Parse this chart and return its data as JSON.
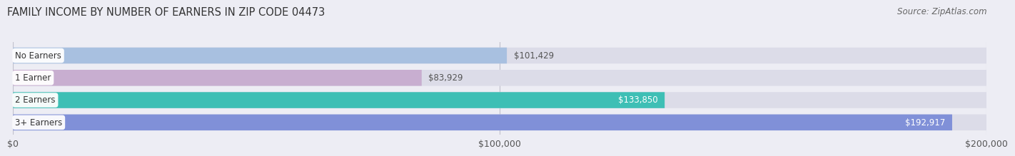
{
  "title": "FAMILY INCOME BY NUMBER OF EARNERS IN ZIP CODE 04473",
  "source": "Source: ZipAtlas.com",
  "categories": [
    "No Earners",
    "1 Earner",
    "2 Earners",
    "3+ Earners"
  ],
  "values": [
    101429,
    83929,
    133850,
    192917
  ],
  "bar_colors": [
    "#a8c0e0",
    "#c8aed0",
    "#3ebfb5",
    "#8090d8"
  ],
  "value_label_inside": [
    false,
    false,
    true,
    true
  ],
  "value_labels": [
    "$101,429",
    "$83,929",
    "$133,850",
    "$192,917"
  ],
  "xlim": [
    0,
    200000
  ],
  "xtick_labels": [
    "$0",
    "$100,000",
    "$200,000"
  ],
  "background_color": "#ededf4",
  "bar_bg_color": "#dcdce8",
  "title_fontsize": 10.5,
  "source_fontsize": 8.5,
  "tick_fontsize": 9
}
